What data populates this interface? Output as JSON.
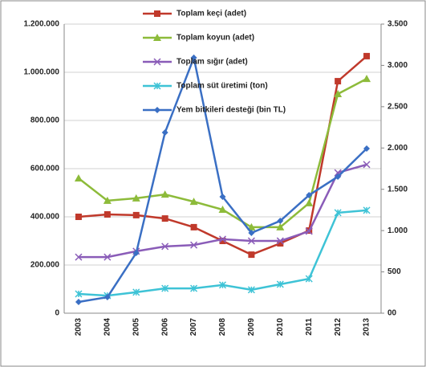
{
  "chart_data": {
    "type": "line",
    "categories": [
      "2003",
      "2004",
      "2005",
      "2006",
      "2007",
      "2008",
      "2009",
      "2010",
      "2011",
      "2012",
      "2013"
    ],
    "series": [
      {
        "name": "Toplam keçi (adet)",
        "color": "#c0392b",
        "marker": "square",
        "values": [
          400000,
          410000,
          407000,
          393000,
          357000,
          300000,
          243000,
          290000,
          343000,
          963000,
          1067000
        ]
      },
      {
        "name": "Toplam koyun (adet)",
        "color": "#8dbb3a",
        "marker": "triangle",
        "values": [
          560000,
          467000,
          477000,
          493000,
          463000,
          430000,
          357000,
          357000,
          457000,
          910000,
          973000
        ]
      },
      {
        "name": "Toplam sığır (adet)",
        "color": "#8a5cb8",
        "marker": "cross",
        "values": [
          233000,
          233000,
          257000,
          277000,
          283000,
          307000,
          300000,
          300000,
          340000,
          583000,
          617000
        ]
      },
      {
        "name": "Toplam süt üretimi (ton)",
        "color": "#3ec3d6",
        "marker": "star",
        "values": [
          80000,
          73000,
          87000,
          103000,
          103000,
          117000,
          97000,
          120000,
          143000,
          417000,
          427000
        ]
      },
      {
        "name": "Yem bitkileri desteği (bin TL)",
        "color": "#3a6fc4",
        "marker": "diamond",
        "axis": "y2",
        "values": [
          136,
          194,
          729,
          2188,
          3093,
          1410,
          972,
          1118,
          1429,
          1653,
          1993
        ]
      }
    ],
    "ylim": [
      0,
      1200000
    ],
    "yticks": [
      {
        "value": 0,
        "label": "0"
      },
      {
        "value": 200000,
        "label": "200.000"
      },
      {
        "value": 400000,
        "label": "400.000"
      },
      {
        "value": 600000,
        "label": "600.000"
      },
      {
        "value": 800000,
        "label": "800.000"
      },
      {
        "value": 1000000,
        "label": "1.000.000"
      },
      {
        "value": 1200000,
        "label": "1.200.000"
      }
    ],
    "y2lim": [
      0,
      3500
    ],
    "y2ticks": [
      {
        "value": 0,
        "label": "00"
      },
      500,
      {
        "value": 1000,
        "label": "1.000"
      },
      {
        "value": 1500,
        "label": "1.500"
      },
      {
        "value": 2000,
        "label": "2.000"
      },
      {
        "value": 2500,
        "label": "2.500"
      },
      {
        "value": 3000,
        "label": "3.000"
      },
      {
        "value": 3500,
        "label": "3.500"
      }
    ],
    "grid": true,
    "legend": "top"
  }
}
